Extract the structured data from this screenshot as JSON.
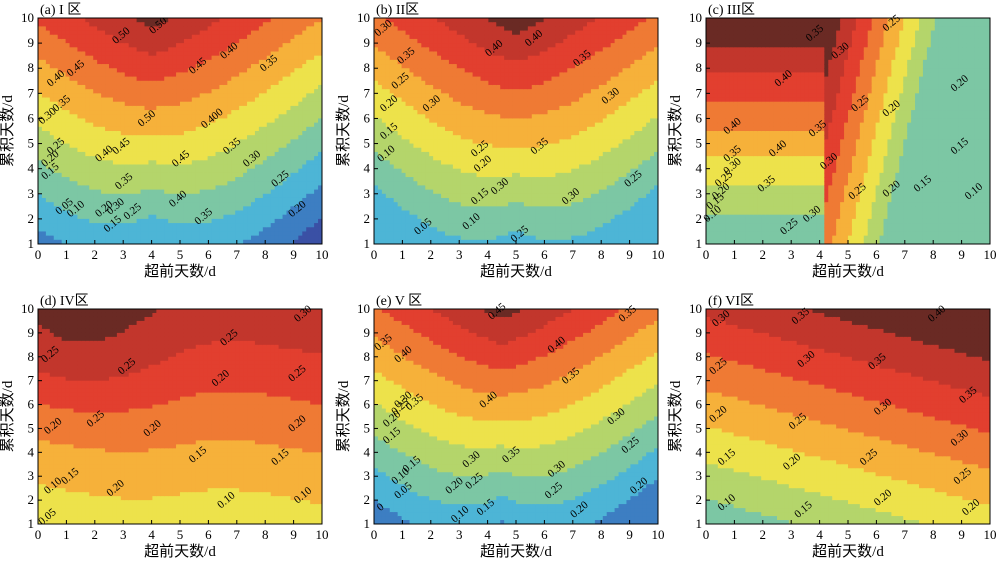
{
  "figure": {
    "xlabel": "超前天数/d",
    "ylabel": "累积天数/d"
  },
  "chart_data": [
    {
      "type": "contour",
      "title": "(a) I 区",
      "xlabel": "超前天数/d",
      "ylabel": "累积天数/d",
      "xlim": [
        0,
        10
      ],
      "ylim": [
        1,
        10
      ],
      "xticks": [
        0,
        1,
        2,
        3,
        4,
        5,
        6,
        7,
        8,
        9,
        10
      ],
      "yticks": [
        1,
        2,
        3,
        4,
        5,
        6,
        7,
        8,
        9,
        10
      ],
      "show_xlabel": true,
      "show_ylabel": true,
      "levels": [
        0.05,
        0.1,
        0.15,
        0.2,
        0.25,
        0.3,
        0.35,
        0.4,
        0.45,
        0.5
      ],
      "field": {
        "kind": "valley",
        "bmin": 0.52,
        "cx": 4.0,
        "s": 0.18,
        "alpha": 0.045,
        "gamma": 0.95,
        "rv": 0.85
      },
      "contour_labels": [
        {
          "text": "0.50",
          "x": 3.0,
          "y": 9.2
        },
        {
          "text": "0.50",
          "x": 4.3,
          "y": 9.6
        },
        {
          "text": "0.50",
          "x": 3.9,
          "y": 5.9
        },
        {
          "text": "0.45",
          "x": 1.4,
          "y": 7.9
        },
        {
          "text": "0.45",
          "x": 5.7,
          "y": 8.0
        },
        {
          "text": "0.45",
          "x": 3.0,
          "y": 4.8
        },
        {
          "text": "0.45",
          "x": 5.1,
          "y": 4.3
        },
        {
          "text": "0.40",
          "x": 0.7,
          "y": 7.5
        },
        {
          "text": "0.40",
          "x": 6.8,
          "y": 8.6
        },
        {
          "text": "0.40",
          "x": 2.4,
          "y": 4.5
        },
        {
          "text": "0.40",
          "x": 5.0,
          "y": 2.7
        },
        {
          "text": "0.400",
          "x": 6.2,
          "y": 5.9
        },
        {
          "text": "0.35",
          "x": 0.9,
          "y": 6.5
        },
        {
          "text": "0.35",
          "x": 8.2,
          "y": 8.1
        },
        {
          "text": "0.35",
          "x": 3.1,
          "y": 3.4
        },
        {
          "text": "0.35",
          "x": 6.9,
          "y": 4.8
        },
        {
          "text": "0.35",
          "x": 5.9,
          "y": 2.0
        },
        {
          "text": "0.30",
          "x": 0.4,
          "y": 6.0
        },
        {
          "text": "0.30",
          "x": 7.6,
          "y": 4.3
        },
        {
          "text": "0.30",
          "x": 2.8,
          "y": 2.4
        },
        {
          "text": "0.25",
          "x": 0.7,
          "y": 4.8
        },
        {
          "text": "0.25",
          "x": 8.6,
          "y": 3.5
        },
        {
          "text": "0.25",
          "x": 3.4,
          "y": 2.2
        },
        {
          "text": "0.20",
          "x": 0.5,
          "y": 4.3
        },
        {
          "text": "0.20",
          "x": 9.2,
          "y": 2.3
        },
        {
          "text": "0.20",
          "x": 2.4,
          "y": 2.3
        },
        {
          "text": "0.15",
          "x": 0.5,
          "y": 3.8
        },
        {
          "text": "0.15",
          "x": 2.7,
          "y": 1.7
        },
        {
          "text": "0.10",
          "x": 1.4,
          "y": 2.3
        },
        {
          "text": "0.05",
          "x": 1.0,
          "y": 2.4
        }
      ]
    },
    {
      "type": "contour",
      "title": "(b) II区",
      "xlabel": "超前天数/d",
      "ylabel": "累积天数/d",
      "xlim": [
        0,
        10
      ],
      "ylim": [
        1,
        10
      ],
      "xticks": [
        0,
        1,
        2,
        3,
        4,
        5,
        6,
        7,
        8,
        9,
        10
      ],
      "yticks": [
        1,
        2,
        3,
        4,
        5,
        6,
        7,
        8,
        9,
        10
      ],
      "show_xlabel": true,
      "show_ylabel": true,
      "levels": [
        0.05,
        0.1,
        0.15,
        0.2,
        0.25,
        0.3,
        0.35,
        0.4
      ],
      "field": {
        "kind": "valley",
        "bmin": 0.43,
        "cx": 5.0,
        "s": 0.22,
        "alpha": 0.043,
        "gamma": 0.9,
        "rv": 0.7
      },
      "contour_labels": [
        {
          "text": "0.40",
          "x": 4.3,
          "y": 8.7
        },
        {
          "text": "0.40",
          "x": 5.7,
          "y": 9.1
        },
        {
          "text": "0.35",
          "x": 1.2,
          "y": 8.4
        },
        {
          "text": "0.35",
          "x": 7.4,
          "y": 8.3
        },
        {
          "text": "0.35",
          "x": 5.9,
          "y": 4.8
        },
        {
          "text": "0.30",
          "x": 0.4,
          "y": 9.5
        },
        {
          "text": "0.30",
          "x": 2.1,
          "y": 6.5
        },
        {
          "text": "0.30",
          "x": 8.4,
          "y": 6.8
        },
        {
          "text": "0.30",
          "x": 4.5,
          "y": 3.2
        },
        {
          "text": "0.30",
          "x": 7.0,
          "y": 2.8
        },
        {
          "text": "0.25",
          "x": 1.0,
          "y": 7.4
        },
        {
          "text": "0.25",
          "x": 3.8,
          "y": 4.7
        },
        {
          "text": "0.25",
          "x": 9.2,
          "y": 3.5
        },
        {
          "text": "0.25",
          "x": 5.2,
          "y": 1.3
        },
        {
          "text": "0.20",
          "x": 0.6,
          "y": 6.5
        },
        {
          "text": "0.20",
          "x": 3.9,
          "y": 4.1
        },
        {
          "text": "0.15",
          "x": 0.6,
          "y": 5.4
        },
        {
          "text": "0.15",
          "x": 3.8,
          "y": 2.8
        },
        {
          "text": "0.10",
          "x": 0.5,
          "y": 4.5
        },
        {
          "text": "0.10",
          "x": 3.5,
          "y": 1.8
        },
        {
          "text": "0.05",
          "x": 1.8,
          "y": 1.6
        }
      ]
    },
    {
      "type": "contour",
      "title": "(c) III区",
      "xlabel": "超前天数/d",
      "ylabel": "累积天数/d",
      "xlim": [
        0,
        10
      ],
      "ylim": [
        1,
        10
      ],
      "xticks": [
        0,
        1,
        2,
        3,
        4,
        5,
        6,
        7,
        8,
        9,
        10
      ],
      "yticks": [
        1,
        2,
        3,
        4,
        5,
        6,
        7,
        8,
        9,
        10
      ],
      "show_xlabel": true,
      "show_ylabel": true,
      "levels": [
        0.05,
        0.1,
        0.15,
        0.2,
        0.25,
        0.3,
        0.35,
        0.4
      ],
      "field": {
        "kind": "plateau",
        "bmin": 0.45,
        "edge": 4.2,
        "k": 0.09,
        "floor": 0.06,
        "alpha": 0.05,
        "gamma": 1.0
      },
      "contour_labels": [
        {
          "text": "0.35",
          "x": 3.9,
          "y": 9.3
        },
        {
          "text": "0.30",
          "x": 4.8,
          "y": 8.6
        },
        {
          "text": "0.25",
          "x": 6.6,
          "y": 9.7
        },
        {
          "text": "0.40",
          "x": 2.8,
          "y": 7.5
        },
        {
          "text": "0.40",
          "x": 1.0,
          "y": 5.6
        },
        {
          "text": "0.40",
          "x": 2.6,
          "y": 4.7
        },
        {
          "text": "0.35",
          "x": 4.0,
          "y": 5.5
        },
        {
          "text": "0.35",
          "x": 1.0,
          "y": 4.5
        },
        {
          "text": "0.35",
          "x": 2.2,
          "y": 3.3
        },
        {
          "text": "0.30",
          "x": 4.4,
          "y": 4.2
        },
        {
          "text": "0.30",
          "x": 1.0,
          "y": 4.0
        },
        {
          "text": "0.30",
          "x": 3.8,
          "y": 2.1
        },
        {
          "text": "0.25",
          "x": 5.5,
          "y": 6.5
        },
        {
          "text": "0.25",
          "x": 5.4,
          "y": 3.0
        },
        {
          "text": "0.25",
          "x": 0.7,
          "y": 3.5
        },
        {
          "text": "0.25",
          "x": 3.0,
          "y": 1.6
        },
        {
          "text": "0.20",
          "x": 9.0,
          "y": 7.3
        },
        {
          "text": "0.20",
          "x": 6.6,
          "y": 6.3
        },
        {
          "text": "0.20",
          "x": 6.6,
          "y": 3.1
        },
        {
          "text": "0.20",
          "x": 0.6,
          "y": 3.0
        },
        {
          "text": "0.15",
          "x": 9.0,
          "y": 4.8
        },
        {
          "text": "0.15",
          "x": 7.7,
          "y": 3.3
        },
        {
          "text": "0.15",
          "x": 0.4,
          "y": 2.6
        },
        {
          "text": "0.10",
          "x": 9.5,
          "y": 3.0
        },
        {
          "text": "0.10",
          "x": 0.3,
          "y": 2.1
        }
      ]
    },
    {
      "type": "contour",
      "title": "(d) IV区",
      "xlabel": "超前天数/d",
      "ylabel": "累积天数/d",
      "xlim": [
        0,
        10
      ],
      "ylim": [
        1,
        10
      ],
      "xticks": [
        0,
        1,
        2,
        3,
        4,
        5,
        6,
        7,
        8,
        9,
        10
      ],
      "yticks": [
        1,
        2,
        3,
        4,
        5,
        6,
        7,
        8,
        9,
        10
      ],
      "show_xlabel": true,
      "show_ylabel": true,
      "levels": [
        0.05,
        0.1,
        0.15,
        0.2,
        0.25,
        0.3
      ],
      "field": {
        "kind": "slope",
        "base": 0.06,
        "ky": 0.024,
        "kx": 0.006,
        "sv": 0.04,
        "sx": 5.0,
        "sw": 0.9,
        "bump": 0.05,
        "bx": 1.2,
        "by": 8.5,
        "bs": 2.0
      },
      "contour_labels": [
        {
          "text": "0.25",
          "x": 0.5,
          "y": 8.0
        },
        {
          "text": "0.25",
          "x": 2.1,
          "y": 5.3
        },
        {
          "text": "0.25",
          "x": 3.2,
          "y": 7.5
        },
        {
          "text": "0.25",
          "x": 6.8,
          "y": 8.7
        },
        {
          "text": "0.25",
          "x": 9.2,
          "y": 7.2
        },
        {
          "text": "0.30",
          "x": 9.4,
          "y": 9.7
        },
        {
          "text": "0.20",
          "x": 0.6,
          "y": 5.0
        },
        {
          "text": "0.20",
          "x": 4.1,
          "y": 4.9
        },
        {
          "text": "0.20",
          "x": 6.5,
          "y": 7.0
        },
        {
          "text": "0.20",
          "x": 9.2,
          "y": 5.1
        },
        {
          "text": "0.20",
          "x": 2.8,
          "y": 2.4
        },
        {
          "text": "0.15",
          "x": 1.2,
          "y": 2.9
        },
        {
          "text": "0.15",
          "x": 5.7,
          "y": 3.8
        },
        {
          "text": "0.15",
          "x": 8.6,
          "y": 3.7
        },
        {
          "text": "0.10",
          "x": 0.6,
          "y": 2.5
        },
        {
          "text": "0.10",
          "x": 6.7,
          "y": 1.9
        },
        {
          "text": "0.10",
          "x": 9.4,
          "y": 2.1
        },
        {
          "text": "0.05",
          "x": 0.4,
          "y": 1.2
        }
      ]
    },
    {
      "type": "contour",
      "title": "(e) V 区",
      "xlabel": "超前天数/d",
      "ylabel": "累积天数/d",
      "xlim": [
        0,
        10
      ],
      "ylim": [
        1,
        10
      ],
      "xticks": [
        0,
        1,
        2,
        3,
        4,
        5,
        6,
        7,
        8,
        9,
        10
      ],
      "yticks": [
        1,
        2,
        3,
        4,
        5,
        6,
        7,
        8,
        9,
        10
      ],
      "show_xlabel": true,
      "show_ylabel": true,
      "levels": [
        0.05,
        0.1,
        0.15,
        0.2,
        0.25,
        0.3,
        0.35,
        0.4,
        0.45
      ],
      "field": {
        "kind": "valley",
        "bmin": 0.47,
        "cx": 4.5,
        "s": 0.35,
        "alpha": 0.045,
        "gamma": 0.9,
        "rv": 0.85
      },
      "contour_labels": [
        {
          "text": "0.45",
          "x": 4.4,
          "y": 9.8
        },
        {
          "text": "0.40",
          "x": 1.1,
          "y": 8.0
        },
        {
          "text": "0.40",
          "x": 6.5,
          "y": 8.4
        },
        {
          "text": "0.40",
          "x": 4.1,
          "y": 6.1
        },
        {
          "text": "0.35",
          "x": 0.4,
          "y": 8.5
        },
        {
          "text": "0.35",
          "x": 1.5,
          "y": 6.0
        },
        {
          "text": "0.35",
          "x": 7.0,
          "y": 7.1
        },
        {
          "text": "0.35",
          "x": 4.9,
          "y": 3.8
        },
        {
          "text": "0.35",
          "x": 9.0,
          "y": 9.7
        },
        {
          "text": "0.30",
          "x": 1.1,
          "y": 6.1
        },
        {
          "text": "0.30",
          "x": 3.5,
          "y": 3.6
        },
        {
          "text": "0.30",
          "x": 6.5,
          "y": 3.2
        },
        {
          "text": "0.30",
          "x": 8.6,
          "y": 5.4
        },
        {
          "text": "0.25",
          "x": 1.0,
          "y": 5.8
        },
        {
          "text": "0.25",
          "x": 3.6,
          "y": 2.7
        },
        {
          "text": "0.25",
          "x": 6.4,
          "y": 2.3
        },
        {
          "text": "0.25",
          "x": 9.1,
          "y": 4.2
        },
        {
          "text": "0.20",
          "x": 0.7,
          "y": 5.3
        },
        {
          "text": "0.20",
          "x": 2.9,
          "y": 2.5
        },
        {
          "text": "0.20",
          "x": 7.3,
          "y": 1.5
        },
        {
          "text": "0.20",
          "x": 9.4,
          "y": 2.5
        },
        {
          "text": "0.15",
          "x": 0.7,
          "y": 4.6
        },
        {
          "text": "0.15",
          "x": 1.4,
          "y": 3.4
        },
        {
          "text": "0.15",
          "x": 4.0,
          "y": 1.6
        },
        {
          "text": "0.10",
          "x": 1.0,
          "y": 2.9
        },
        {
          "text": "0.10",
          "x": 3.1,
          "y": 1.3
        },
        {
          "text": "0.05",
          "x": 1.1,
          "y": 2.3
        },
        {
          "text": "0",
          "x": 0.3,
          "y": 1.6
        }
      ]
    },
    {
      "type": "contour",
      "title": "(f) VI区",
      "xlabel": "超前天数/d",
      "ylabel": "累积天数/d",
      "xlim": [
        0,
        10
      ],
      "ylim": [
        1,
        10
      ],
      "xticks": [
        0,
        1,
        2,
        3,
        4,
        5,
        6,
        7,
        8,
        9,
        10
      ],
      "yticks": [
        1,
        2,
        3,
        4,
        5,
        6,
        7,
        8,
        9,
        10
      ],
      "show_xlabel": true,
      "show_ylabel": true,
      "levels": [
        0.05,
        0.1,
        0.15,
        0.2,
        0.25,
        0.3,
        0.35,
        0.4
      ],
      "field": {
        "kind": "linear",
        "base": 0.065,
        "ky": 0.033,
        "kx": 0.011
      },
      "contour_labels": [
        {
          "text": "0.30",
          "x": 0.6,
          "y": 9.5
        },
        {
          "text": "0.35",
          "x": 3.4,
          "y": 9.6
        },
        {
          "text": "0.40",
          "x": 8.2,
          "y": 9.7
        },
        {
          "text": "0.25",
          "x": 0.5,
          "y": 7.5
        },
        {
          "text": "0.30",
          "x": 3.6,
          "y": 7.8
        },
        {
          "text": "0.35",
          "x": 6.1,
          "y": 7.7
        },
        {
          "text": "0.35",
          "x": 9.3,
          "y": 6.3
        },
        {
          "text": "0.20",
          "x": 0.5,
          "y": 5.5
        },
        {
          "text": "0.25",
          "x": 3.3,
          "y": 5.2
        },
        {
          "text": "0.30",
          "x": 6.3,
          "y": 5.8
        },
        {
          "text": "0.30",
          "x": 9.0,
          "y": 4.5
        },
        {
          "text": "0.15",
          "x": 0.8,
          "y": 3.7
        },
        {
          "text": "0.20",
          "x": 3.1,
          "y": 3.5
        },
        {
          "text": "0.25",
          "x": 5.8,
          "y": 3.7
        },
        {
          "text": "0.25",
          "x": 9.1,
          "y": 2.9
        },
        {
          "text": "0.10",
          "x": 0.8,
          "y": 1.8
        },
        {
          "text": "0.15",
          "x": 3.5,
          "y": 1.5
        },
        {
          "text": "0.20",
          "x": 6.3,
          "y": 2.0
        },
        {
          "text": "0.20",
          "x": 9.4,
          "y": 1.6
        }
      ]
    }
  ],
  "colors": {
    "bands": [
      "#352a87",
      "#3a50a5",
      "#3d7ec2",
      "#4db5d6",
      "#7cc7a4",
      "#b4d56b",
      "#ede24b",
      "#f6b13a",
      "#ef7a34",
      "#e23f2f",
      "#c2362c",
      "#6a2a24"
    ]
  }
}
